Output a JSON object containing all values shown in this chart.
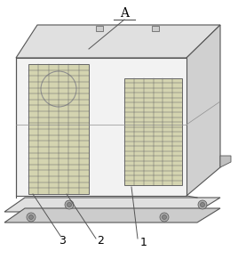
{
  "bg_color": "#ffffff",
  "line_color": "#909090",
  "dark_line": "#555555",
  "coil_face": "#d4d4b0",
  "coil_grid": "#666666",
  "box_front": "#f2f2f2",
  "box_top": "#e0e0e0",
  "box_right": "#d0d0d0",
  "box_left": "#e8e8e8",
  "base_color": "#e0e0e0",
  "label_A": "A",
  "label_1": "1",
  "label_2": "2",
  "label_3": "3",
  "fontsize_A": 10,
  "fontsize_labels": 9
}
